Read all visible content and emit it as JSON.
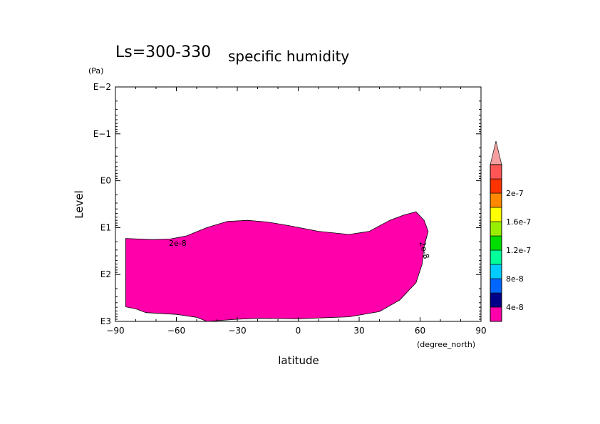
{
  "chart_data": {
    "type": "contour",
    "title_prefix": "Ls=300-330",
    "title_main": "specific humidity",
    "xlabel": "latitude",
    "x_unit": "(degree_north)",
    "ylabel": "Level",
    "y_unit": "(Pa)",
    "xlim": [
      -90,
      90
    ],
    "x_ticks": [
      -90,
      -60,
      -30,
      0,
      30,
      60,
      90
    ],
    "x_tick_labels": [
      "−90",
      "−60",
      "−30",
      "0",
      "30",
      "60",
      "90"
    ],
    "y_scale": "log",
    "y_reversed": true,
    "ylim": [
      0.01,
      1000
    ],
    "y_ticks": [
      0.01,
      0.1,
      1,
      10,
      100,
      1000
    ],
    "y_tick_labels": [
      "E−2",
      "E−1",
      "E0",
      "E1",
      "E2",
      "E3"
    ],
    "contour_label": "2e-8",
    "region_outline": [
      [
        -85,
        17
      ],
      [
        -72,
        18
      ],
      [
        -63,
        17.5
      ],
      [
        -55,
        15
      ],
      [
        -45,
        10
      ],
      [
        -35,
        7.4
      ],
      [
        -25,
        7
      ],
      [
        -15,
        7.6
      ],
      [
        -5,
        9
      ],
      [
        10,
        12
      ],
      [
        25,
        14
      ],
      [
        35,
        12
      ],
      [
        45,
        7
      ],
      [
        52,
        5.4
      ],
      [
        58,
        4.6
      ],
      [
        62,
        7
      ],
      [
        64,
        12
      ],
      [
        62,
        25
      ],
      [
        61,
        60
      ],
      [
        58,
        150
      ],
      [
        50,
        350
      ],
      [
        40,
        620
      ],
      [
        25,
        800
      ],
      [
        0,
        880
      ],
      [
        -20,
        860
      ],
      [
        -30,
        900
      ],
      [
        -45,
        1000
      ],
      [
        -50,
        820
      ],
      [
        -60,
        710
      ],
      [
        -75,
        650
      ],
      [
        -80,
        540
      ],
      [
        -85,
        490
      ]
    ],
    "colorbar": {
      "colors": [
        "#ff00aa",
        "#000088",
        "#0066ff",
        "#00ccff",
        "#00ff99",
        "#00dd00",
        "#99ee00",
        "#ffff00",
        "#ff8800",
        "#ff3300",
        "#ff5555",
        "#f4a0a0"
      ],
      "labels": [
        "4e-8",
        "8e-8",
        "1.2e-7",
        "1.6e-7",
        "2e-7"
      ]
    }
  }
}
